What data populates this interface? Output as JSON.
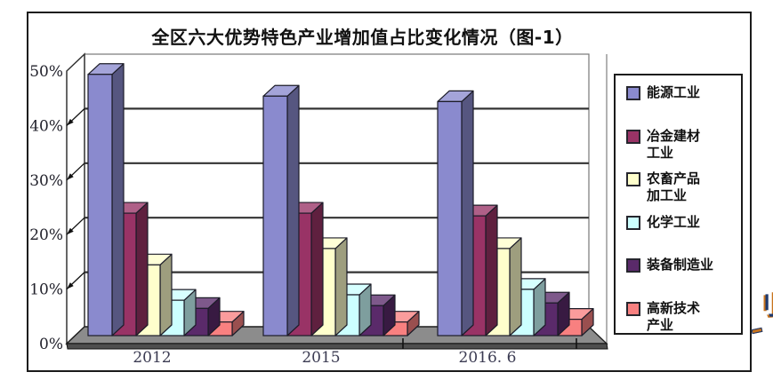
{
  "title": "全区六大优势特色产业增加值占比变化情况（图-1）",
  "chart_data": {
    "type": "bar",
    "subtype": "3d-clustered-column",
    "title": "全区六大优势特色产业增加值占比变化情况（图-1）",
    "categories": [
      "2012",
      "2015",
      "2016. 6"
    ],
    "series": [
      {
        "name": "能源工业",
        "color": "#8A8ACE",
        "values": [
          48,
          44,
          43
        ]
      },
      {
        "name": "冶金建材工业",
        "color": "#993366",
        "values": [
          22.5,
          22.5,
          22
        ]
      },
      {
        "name": "农畜产品加工业",
        "color": "#FFFFCC",
        "values": [
          13,
          16,
          16
        ]
      },
      {
        "name": "化学工业",
        "color": "#CCFFFF",
        "values": [
          6.5,
          7.5,
          8.5
        ]
      },
      {
        "name": "装备制造业",
        "color": "#5A2A6A",
        "values": [
          5,
          5.5,
          6
        ]
      },
      {
        "name": "高新技术产业",
        "color": "#F88080",
        "values": [
          2.5,
          2.5,
          3
        ]
      }
    ],
    "y_ticks": [
      "0%",
      "10%",
      "20%",
      "30%",
      "40%",
      "50%"
    ],
    "y_tick_values": [
      0,
      10,
      20,
      30,
      40,
      50
    ],
    "ylim": [
      0,
      50
    ],
    "grid": true,
    "legend_position": "right",
    "wall_color": "#FFFFFF",
    "floor_color": "#8C8C8C"
  },
  "legend": {
    "items": [
      {
        "label": "能源工业",
        "lines": [
          "能源工业"
        ]
      },
      {
        "label": "冶金建材工业",
        "lines": [
          "冶金建材",
          "工业"
        ]
      },
      {
        "label": "农畜产品加工业",
        "lines": [
          "农畜产品",
          "加工业"
        ]
      },
      {
        "label": "化学工业",
        "lines": [
          "化学工业"
        ]
      },
      {
        "label": "装备制造业",
        "lines": [
          "装备制造业"
        ]
      },
      {
        "label": "高新技术产业",
        "lines": [
          "高新技术",
          "产业"
        ]
      }
    ]
  },
  "artifact": {
    "glyph": "刂"
  }
}
